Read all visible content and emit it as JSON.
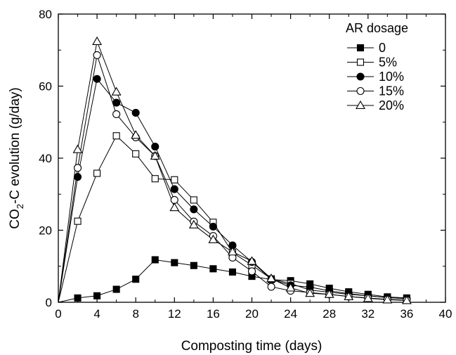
{
  "chart_data": {
    "type": "line",
    "title": "",
    "xlabel": "Composting time (days)",
    "ylabel_main": "CO",
    "ylabel_sub": "2",
    "ylabel_rest": "-C evolution (g/day)",
    "xlim": [
      0,
      40
    ],
    "ylim": [
      0,
      80
    ],
    "xticks": [
      0,
      4,
      8,
      12,
      16,
      20,
      24,
      28,
      32,
      36,
      40
    ],
    "yticks": [
      0,
      20,
      40,
      60,
      80
    ],
    "xtick_labels": [
      "0",
      "4",
      "8",
      "12",
      "16",
      "20",
      "24",
      "28",
      "32",
      "36",
      "40"
    ],
    "ytick_labels": [
      "0",
      "20",
      "40",
      "60",
      "80"
    ],
    "grid": false,
    "legend_title": "AR dosage",
    "legend_position": "top-right",
    "x": [
      0,
      2,
      4,
      6,
      8,
      10,
      12,
      14,
      16,
      18,
      20,
      22,
      24,
      26,
      28,
      30,
      32,
      34,
      36
    ],
    "series": [
      {
        "name": "0",
        "marker": "square-filled",
        "values": [
          0,
          1.2,
          1.8,
          3.6,
          6.4,
          11.8,
          11.0,
          10.2,
          9.3,
          8.4,
          7.2,
          6.3,
          6.0,
          5.1,
          3.9,
          2.9,
          2.2,
          1.5,
          1.2
        ]
      },
      {
        "name": "5%",
        "marker": "square-open",
        "values": [
          0,
          22.5,
          35.8,
          46.2,
          41.2,
          34.3,
          34.0,
          28.4,
          22.2,
          13.8,
          10.3,
          6.5,
          5.2,
          3.4,
          2.8,
          2.2,
          1.8,
          1.3,
          1.0
        ]
      },
      {
        "name": "10%",
        "marker": "circle-filled",
        "values": [
          0,
          34.8,
          62.0,
          55.4,
          52.6,
          43.2,
          31.4,
          25.8,
          21.0,
          15.8,
          11.2,
          6.4,
          4.7,
          4.2,
          3.2,
          2.4,
          1.8,
          1.3,
          1.0
        ]
      },
      {
        "name": "15%",
        "marker": "circle-open",
        "values": [
          0,
          37.3,
          68.6,
          52.2,
          45.8,
          40.6,
          28.4,
          22.4,
          18.4,
          12.4,
          8.6,
          4.3,
          3.2,
          2.7,
          2.2,
          1.6,
          1.2,
          0.8,
          0.6
        ]
      },
      {
        "name": "20%",
        "marker": "triangle-open",
        "values": [
          0,
          42.4,
          72.4,
          58.4,
          46.4,
          40.6,
          26.3,
          21.5,
          17.4,
          14.0,
          11.4,
          6.6,
          4.0,
          2.5,
          2.2,
          1.6,
          1.1,
          0.7,
          0.5
        ]
      }
    ]
  }
}
